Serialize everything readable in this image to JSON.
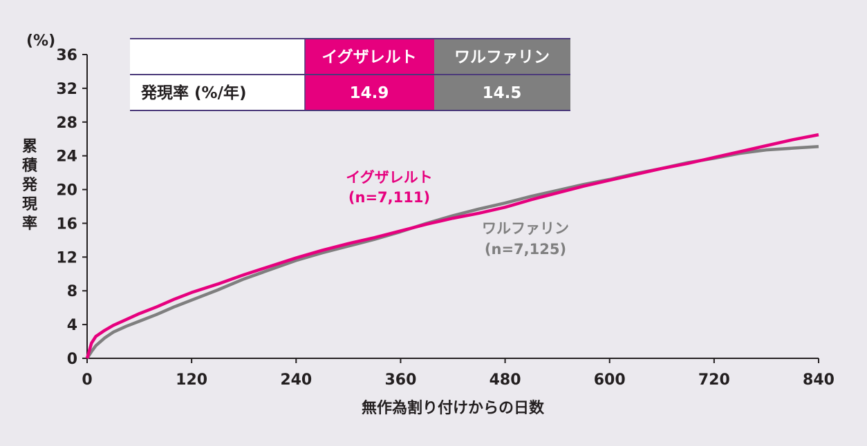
{
  "colors": {
    "background": "#ebe9ee",
    "xarelto": "#e6007e",
    "warfarin": "#7f7f7f",
    "table_border": "#4b3a7a",
    "axis": "#231f20"
  },
  "table": {
    "header_blank": "",
    "col1_header": "イグザレルト",
    "col2_header": "ワルファリン",
    "row_label": "発現率 (%/年)",
    "col1_value": "14.9",
    "col2_value": "14.5"
  },
  "chart_data": {
    "type": "line",
    "y_unit": "(%)",
    "ylabel_chars": [
      "累",
      "積",
      "発",
      "現",
      "率"
    ],
    "xlabel": "無作為割り付けからの日数",
    "xlim": [
      0,
      840
    ],
    "ylim": [
      0,
      36
    ],
    "x_ticks": [
      "0",
      "120",
      "240",
      "360",
      "480",
      "600",
      "720",
      "840"
    ],
    "y_ticks": [
      "0",
      "4",
      "8",
      "12",
      "16",
      "20",
      "24",
      "28",
      "32",
      "36"
    ],
    "annotations": {
      "xarelto_name": "イグザレルト",
      "xarelto_n": "(n=7,111)",
      "warfarin_name": "ワルファリン",
      "warfarin_n": "(n=7,125)"
    },
    "series": [
      {
        "name": "イグザレルト",
        "color": "#e6007e",
        "x": [
          0,
          5,
          10,
          20,
          30,
          45,
          60,
          80,
          100,
          120,
          150,
          180,
          210,
          240,
          270,
          300,
          330,
          360,
          390,
          420,
          450,
          480,
          510,
          540,
          570,
          600,
          630,
          660,
          690,
          720,
          750,
          780,
          810,
          840
        ],
        "y": [
          0,
          1.8,
          2.6,
          3.3,
          3.9,
          4.6,
          5.3,
          6.1,
          7.0,
          7.8,
          8.8,
          9.9,
          10.9,
          11.9,
          12.8,
          13.6,
          14.3,
          15.1,
          15.9,
          16.6,
          17.2,
          17.9,
          18.8,
          19.6,
          20.4,
          21.1,
          21.8,
          22.5,
          23.1,
          23.8,
          24.5,
          25.2,
          25.9,
          26.5
        ]
      },
      {
        "name": "ワルファリン",
        "color": "#7f7f7f",
        "x": [
          0,
          5,
          10,
          20,
          30,
          45,
          60,
          80,
          100,
          120,
          150,
          180,
          210,
          240,
          270,
          300,
          330,
          360,
          390,
          420,
          450,
          480,
          510,
          540,
          570,
          600,
          630,
          660,
          690,
          720,
          750,
          780,
          810,
          840
        ],
        "y": [
          0,
          0.8,
          1.5,
          2.4,
          3.1,
          3.8,
          4.4,
          5.2,
          6.1,
          6.9,
          8.1,
          9.4,
          10.5,
          11.6,
          12.5,
          13.3,
          14.1,
          15.0,
          16.0,
          16.9,
          17.7,
          18.4,
          19.2,
          19.9,
          20.6,
          21.2,
          21.9,
          22.5,
          23.2,
          23.7,
          24.3,
          24.7,
          24.9,
          25.1
        ]
      }
    ]
  }
}
